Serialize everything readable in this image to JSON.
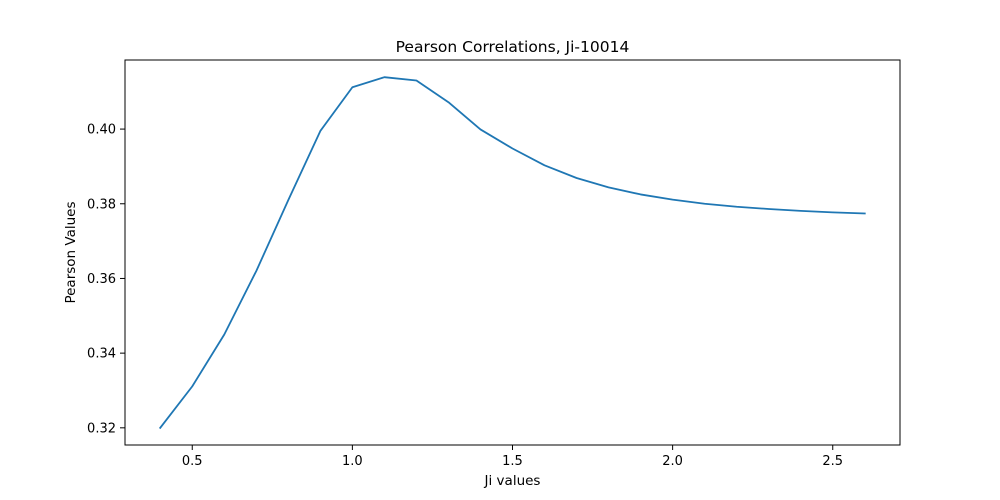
{
  "chart_data": {
    "type": "line",
    "title": "Pearson Correlations, Ji-10014",
    "xlabel": "Ji values",
    "ylabel": "Pearson Values",
    "xlim": [
      0.29,
      2.71
    ],
    "ylim": [
      0.3154,
      0.4185
    ],
    "xticks": [
      0.5,
      1.0,
      1.5,
      2.0,
      2.5
    ],
    "xtick_labels": [
      "0.5",
      "1.0",
      "1.5",
      "2.0",
      "2.5"
    ],
    "yticks": [
      0.32,
      0.34,
      0.36,
      0.38,
      0.4
    ],
    "ytick_labels": [
      "0.32",
      "0.34",
      "0.36",
      "0.38",
      "0.40"
    ],
    "grid": false,
    "series": [
      {
        "color": "#1f77b4",
        "x": [
          0.4,
          0.5,
          0.6,
          0.7,
          0.8,
          0.9,
          1.0,
          1.1,
          1.2,
          1.3,
          1.4,
          1.5,
          1.6,
          1.7,
          1.8,
          1.9,
          2.0,
          2.1,
          2.2,
          2.3,
          2.4,
          2.5,
          2.6
        ],
        "y": [
          0.32,
          0.3311,
          0.345,
          0.362,
          0.381,
          0.3995,
          0.4112,
          0.4139,
          0.413,
          0.4072,
          0.3999,
          0.3948,
          0.3903,
          0.3869,
          0.3844,
          0.3825,
          0.3811,
          0.38,
          0.3792,
          0.3786,
          0.3781,
          0.3777,
          0.3774
        ]
      }
    ]
  }
}
